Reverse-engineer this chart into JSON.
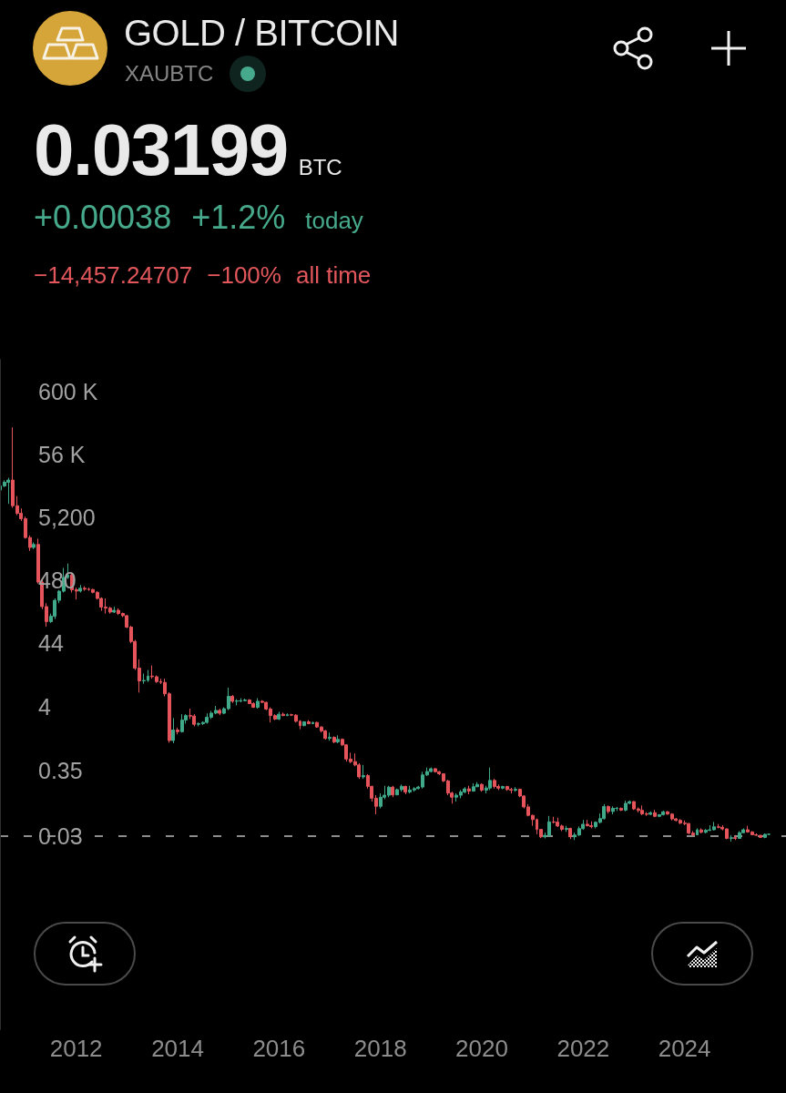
{
  "chart_data": {
    "type": "candlestick",
    "title": "GOLD / BITCOIN",
    "subtitle": "XAUBTC",
    "annotations": [
      "0.03199",
      "BTC",
      "+0.00038",
      "+1.2%",
      "today",
      "−14,457.24707",
      "−100%",
      "all time"
    ],
    "x": [
      "2010-07",
      "2010-08",
      "2010-09",
      "2010-10",
      "2010-11",
      "2010-12",
      "2011-01",
      "2011-02",
      "2011-03",
      "2011-04",
      "2011-05",
      "2011-06",
      "2011-07",
      "2011-08",
      "2011-09",
      "2011-10",
      "2011-11",
      "2011-12",
      "2012-01",
      "2012-02",
      "2012-03",
      "2012-04",
      "2012-05",
      "2012-06",
      "2012-07",
      "2012-08",
      "2012-09",
      "2012-10",
      "2012-11",
      "2012-12",
      "2013-01",
      "2013-02",
      "2013-03",
      "2013-04",
      "2013-05",
      "2013-06",
      "2013-07",
      "2013-08",
      "2013-09",
      "2013-10",
      "2013-11",
      "2013-12",
      "2014-01",
      "2014-02",
      "2014-03",
      "2014-04",
      "2014-05",
      "2014-06",
      "2014-07",
      "2014-08",
      "2014-09",
      "2014-10",
      "2014-11",
      "2014-12",
      "2015-01",
      "2015-02",
      "2015-03",
      "2015-04",
      "2015-05",
      "2015-06",
      "2015-07",
      "2015-08",
      "2015-09",
      "2015-10",
      "2015-11",
      "2015-12",
      "2016-01",
      "2016-02",
      "2016-03",
      "2016-04",
      "2016-05",
      "2016-06",
      "2016-07",
      "2016-08",
      "2016-09",
      "2016-10",
      "2016-11",
      "2016-12",
      "2017-01",
      "2017-02",
      "2017-03",
      "2017-04",
      "2017-05",
      "2017-06",
      "2017-07",
      "2017-08",
      "2017-09",
      "2017-10",
      "2017-11",
      "2017-12",
      "2018-01",
      "2018-02",
      "2018-03",
      "2018-04",
      "2018-05",
      "2018-06",
      "2018-07",
      "2018-08",
      "2018-09",
      "2018-10",
      "2018-11",
      "2018-12",
      "2019-01",
      "2019-02",
      "2019-03",
      "2019-04",
      "2019-05",
      "2019-06",
      "2019-07",
      "2019-08",
      "2019-09",
      "2019-10",
      "2019-11",
      "2019-12",
      "2020-01",
      "2020-02",
      "2020-03",
      "2020-04",
      "2020-05",
      "2020-06",
      "2020-07",
      "2020-08",
      "2020-09",
      "2020-10",
      "2020-11",
      "2020-12",
      "2021-01",
      "2021-02",
      "2021-03",
      "2021-04",
      "2021-05",
      "2021-06",
      "2021-07",
      "2021-08",
      "2021-09",
      "2021-10",
      "2021-11",
      "2021-12",
      "2022-01",
      "2022-02",
      "2022-03",
      "2022-04",
      "2022-05",
      "2022-06",
      "2022-07",
      "2022-08",
      "2022-09",
      "2022-10",
      "2022-11",
      "2022-12",
      "2023-01",
      "2023-02",
      "2023-03",
      "2023-04",
      "2023-05",
      "2023-06",
      "2023-07",
      "2023-08",
      "2023-09",
      "2023-10",
      "2023-11",
      "2023-12",
      "2024-01",
      "2024-02",
      "2024-03",
      "2024-04",
      "2024-05",
      "2024-06",
      "2024-07",
      "2024-08",
      "2024-09",
      "2024-10",
      "2024-11",
      "2024-12",
      "2025-01",
      "2025-02",
      "2025-03",
      "2025-04",
      "2025-05",
      "2025-06",
      "2025-07",
      "2025-08",
      "2025-09"
    ],
    "ohlc": [
      [
        14457,
        18500,
        14000,
        16900
      ],
      [
        16900,
        21000,
        16200,
        19400
      ],
      [
        19400,
        23000,
        8600,
        21100
      ],
      [
        21100,
        155000,
        7400,
        8000
      ],
      [
        8000,
        11500,
        5600,
        6000
      ],
      [
        6000,
        7200,
        4500,
        4900
      ],
      [
        4900,
        5300,
        2300,
        2400
      ],
      [
        2400,
        2600,
        1450,
        1650
      ],
      [
        1650,
        2000,
        1550,
        1850
      ],
      [
        1850,
        2300,
        420,
        445
      ],
      [
        445,
        520,
        160,
        176
      ],
      [
        176,
        200,
        82,
        100
      ],
      [
        100,
        135,
        95,
        122
      ],
      [
        122,
        240,
        110,
        223
      ],
      [
        223,
        330,
        200,
        315
      ],
      [
        315,
        760,
        300,
        530
      ],
      [
        530,
        900,
        500,
        582
      ],
      [
        582,
        640,
        300,
        332
      ],
      [
        332,
        360,
        230,
        317
      ],
      [
        317,
        400,
        300,
        352
      ],
      [
        352,
        380,
        320,
        340
      ],
      [
        340,
        360,
        320,
        336
      ],
      [
        336,
        345,
        290,
        302
      ],
      [
        302,
        315,
        230,
        240
      ],
      [
        240,
        250,
        150,
        173
      ],
      [
        173,
        240,
        135,
        166
      ],
      [
        166,
        175,
        135,
        143
      ],
      [
        143,
        175,
        138,
        153
      ],
      [
        153,
        165,
        128,
        136
      ],
      [
        136,
        140,
        118,
        125
      ],
      [
        125,
        128,
        78,
        81
      ],
      [
        81,
        85,
        44,
        47
      ],
      [
        47,
        50,
        16,
        17.2
      ],
      [
        17.2,
        24,
        6.8,
        10.6
      ],
      [
        10.6,
        14,
        9.5,
        10.8
      ],
      [
        10.8,
        16,
        10.2,
        12.7
      ],
      [
        12.7,
        19,
        11.5,
        12.4
      ],
      [
        12.4,
        13,
        9.8,
        10.3
      ],
      [
        10.3,
        11.5,
        9.4,
        10.0
      ],
      [
        10.0,
        11.5,
        5.9,
        6.5
      ],
      [
        6.5,
        6.9,
        1.02,
        1.11
      ],
      [
        1.11,
        2.6,
        1.0,
        1.65
      ],
      [
        1.65,
        1.8,
        1.4,
        1.55
      ],
      [
        1.55,
        3.0,
        1.5,
        2.4
      ],
      [
        2.4,
        3.0,
        2.1,
        2.85
      ],
      [
        2.85,
        3.7,
        2.5,
        2.8
      ],
      [
        2.8,
        3.0,
        1.9,
        2.05
      ],
      [
        2.05,
        2.2,
        1.9,
        2.1
      ],
      [
        2.1,
        2.3,
        2.0,
        2.2
      ],
      [
        2.2,
        3.1,
        2.1,
        2.68
      ],
      [
        2.68,
        3.4,
        2.5,
        3.13
      ],
      [
        3.13,
        4.1,
        3.0,
        3.47
      ],
      [
        3.47,
        3.7,
        2.9,
        3.11
      ],
      [
        3.11,
        3.9,
        3.0,
        3.7
      ],
      [
        3.7,
        8.2,
        3.5,
        5.9
      ],
      [
        5.9,
        6.2,
        4.6,
        4.9
      ],
      [
        4.9,
        5.3,
        4.2,
        4.95
      ],
      [
        4.95,
        5.5,
        4.7,
        5.0
      ],
      [
        5.0,
        5.4,
        4.9,
        5.15
      ],
      [
        5.15,
        5.3,
        4.4,
        4.5
      ],
      [
        4.5,
        4.7,
        3.8,
        3.9
      ],
      [
        3.9,
        5.5,
        3.7,
        4.9
      ],
      [
        4.9,
        5.1,
        4.6,
        4.7
      ],
      [
        4.7,
        4.8,
        3.5,
        3.65
      ],
      [
        3.65,
        3.9,
        2.2,
        2.85
      ],
      [
        2.85,
        3.0,
        2.4,
        2.5
      ],
      [
        2.5,
        3.3,
        2.4,
        3.0
      ],
      [
        3.0,
        3.2,
        2.8,
        2.85
      ],
      [
        2.85,
        3.1,
        2.8,
        2.95
      ],
      [
        2.95,
        3.05,
        2.8,
        2.9
      ],
      [
        2.9,
        3.0,
        2.2,
        2.3
      ],
      [
        2.3,
        2.4,
        1.7,
        1.95
      ],
      [
        1.95,
        2.3,
        1.9,
        2.25
      ],
      [
        2.25,
        2.4,
        2.05,
        2.1
      ],
      [
        2.1,
        2.25,
        2.05,
        2.2
      ],
      [
        2.2,
        2.25,
        1.8,
        1.85
      ],
      [
        1.85,
        1.9,
        1.5,
        1.6
      ],
      [
        1.6,
        1.65,
        1.15,
        1.2
      ],
      [
        1.2,
        1.5,
        1.1,
        1.25
      ],
      [
        1.25,
        1.3,
        1.0,
        1.05
      ],
      [
        1.05,
        1.35,
        1.0,
        1.16
      ],
      [
        1.16,
        1.2,
        0.9,
        0.94
      ],
      [
        0.94,
        0.97,
        0.5,
        0.55
      ],
      [
        0.55,
        0.7,
        0.47,
        0.5
      ],
      [
        0.5,
        0.68,
        0.42,
        0.44
      ],
      [
        0.44,
        0.47,
        0.26,
        0.28
      ],
      [
        0.28,
        0.44,
        0.26,
        0.295
      ],
      [
        0.295,
        0.31,
        0.18,
        0.196
      ],
      [
        0.196,
        0.2,
        0.11,
        0.125
      ],
      [
        0.125,
        0.14,
        0.068,
        0.092
      ],
      [
        0.092,
        0.15,
        0.085,
        0.13
      ],
      [
        0.13,
        0.2,
        0.12,
        0.14
      ],
      [
        0.14,
        0.2,
        0.13,
        0.19
      ],
      [
        0.19,
        0.2,
        0.13,
        0.142
      ],
      [
        0.142,
        0.18,
        0.14,
        0.173
      ],
      [
        0.173,
        0.21,
        0.16,
        0.196
      ],
      [
        0.196,
        0.2,
        0.145,
        0.158
      ],
      [
        0.158,
        0.2,
        0.15,
        0.171
      ],
      [
        0.171,
        0.19,
        0.16,
        0.18
      ],
      [
        0.18,
        0.2,
        0.175,
        0.191
      ],
      [
        0.191,
        0.34,
        0.18,
        0.302
      ],
      [
        0.302,
        0.4,
        0.29,
        0.343
      ],
      [
        0.343,
        0.4,
        0.33,
        0.382
      ],
      [
        0.382,
        0.39,
        0.33,
        0.341
      ],
      [
        0.341,
        0.35,
        0.3,
        0.315
      ],
      [
        0.315,
        0.32,
        0.23,
        0.241
      ],
      [
        0.241,
        0.25,
        0.14,
        0.152
      ],
      [
        0.152,
        0.16,
        0.102,
        0.13
      ],
      [
        0.13,
        0.15,
        0.11,
        0.14
      ],
      [
        0.14,
        0.17,
        0.125,
        0.158
      ],
      [
        0.158,
        0.19,
        0.15,
        0.178
      ],
      [
        0.178,
        0.2,
        0.145,
        0.164
      ],
      [
        0.164,
        0.22,
        0.16,
        0.193
      ],
      [
        0.193,
        0.23,
        0.19,
        0.211
      ],
      [
        0.211,
        0.22,
        0.16,
        0.17
      ],
      [
        0.17,
        0.2,
        0.15,
        0.184
      ],
      [
        0.184,
        0.4,
        0.17,
        0.245
      ],
      [
        0.245,
        0.26,
        0.18,
        0.195
      ],
      [
        0.195,
        0.21,
        0.17,
        0.183
      ],
      [
        0.183,
        0.2,
        0.175,
        0.195
      ],
      [
        0.195,
        0.2,
        0.165,
        0.174
      ],
      [
        0.174,
        0.185,
        0.15,
        0.169
      ],
      [
        0.169,
        0.19,
        0.16,
        0.175
      ],
      [
        0.175,
        0.18,
        0.13,
        0.136
      ],
      [
        0.136,
        0.14,
        0.085,
        0.09
      ],
      [
        0.09,
        0.1,
        0.063,
        0.0654
      ],
      [
        0.0654,
        0.067,
        0.044,
        0.0558
      ],
      [
        0.0558,
        0.058,
        0.032,
        0.0384
      ],
      [
        0.0384,
        0.0385,
        0.0277,
        0.029
      ],
      [
        0.029,
        0.034,
        0.0273,
        0.0307
      ],
      [
        0.0307,
        0.064,
        0.029,
        0.0511
      ],
      [
        0.0511,
        0.062,
        0.048,
        0.0506
      ],
      [
        0.0506,
        0.06,
        0.042,
        0.0437
      ],
      [
        0.0437,
        0.046,
        0.036,
        0.0385
      ],
      [
        0.0385,
        0.044,
        0.035,
        0.0398
      ],
      [
        0.0398,
        0.041,
        0.0266,
        0.0291
      ],
      [
        0.0291,
        0.034,
        0.0257,
        0.0311
      ],
      [
        0.0311,
        0.043,
        0.03,
        0.0395
      ],
      [
        0.0395,
        0.055,
        0.038,
        0.0467
      ],
      [
        0.0467,
        0.055,
        0.043,
        0.0442
      ],
      [
        0.0442,
        0.052,
        0.04,
        0.0426
      ],
      [
        0.0426,
        0.052,
        0.04,
        0.0503
      ],
      [
        0.0503,
        0.07,
        0.048,
        0.0578
      ],
      [
        0.0578,
        0.1,
        0.056,
        0.0913
      ],
      [
        0.0913,
        0.095,
        0.07,
        0.0758
      ],
      [
        0.0758,
        0.092,
        0.068,
        0.0853
      ],
      [
        0.0853,
        0.09,
        0.077,
        0.0855
      ],
      [
        0.0855,
        0.088,
        0.077,
        0.0797
      ],
      [
        0.0797,
        0.114,
        0.076,
        0.103
      ],
      [
        0.103,
        0.115,
        0.1,
        0.11
      ],
      [
        0.11,
        0.112,
        0.08,
        0.0835
      ],
      [
        0.0835,
        0.088,
        0.073,
        0.0789
      ],
      [
        0.0789,
        0.095,
        0.066,
        0.0691
      ],
      [
        0.0691,
        0.074,
        0.064,
        0.068
      ],
      [
        0.068,
        0.076,
        0.066,
        0.0722
      ],
      [
        0.0722,
        0.08,
        0.061,
        0.063
      ],
      [
        0.063,
        0.068,
        0.061,
        0.0672
      ],
      [
        0.0672,
        0.078,
        0.065,
        0.0748
      ],
      [
        0.0748,
        0.077,
        0.067,
        0.0686
      ],
      [
        0.0686,
        0.071,
        0.054,
        0.0572
      ],
      [
        0.0572,
        0.059,
        0.052,
        0.054
      ],
      [
        0.054,
        0.057,
        0.047,
        0.0488
      ],
      [
        0.0488,
        0.054,
        0.045,
        0.0479
      ],
      [
        0.0479,
        0.049,
        0.032,
        0.0334
      ],
      [
        0.0334,
        0.036,
        0.0298,
        0.0313
      ],
      [
        0.0313,
        0.04,
        0.031,
        0.0377
      ],
      [
        0.0377,
        0.04,
        0.033,
        0.0345
      ],
      [
        0.0345,
        0.039,
        0.033,
        0.0371
      ],
      [
        0.0371,
        0.045,
        0.036,
        0.0379
      ],
      [
        0.0379,
        0.051,
        0.037,
        0.0424
      ],
      [
        0.0424,
        0.047,
        0.04,
        0.0416
      ],
      [
        0.0416,
        0.045,
        0.037,
        0.0391
      ],
      [
        0.0391,
        0.04,
        0.0265,
        0.0274
      ],
      [
        0.0274,
        0.031,
        0.0243,
        0.0281
      ],
      [
        0.0281,
        0.031,
        0.0257,
        0.0273
      ],
      [
        0.0273,
        0.036,
        0.027,
        0.0339
      ],
      [
        0.0339,
        0.04,
        0.033,
        0.0379
      ],
      [
        0.0379,
        0.044,
        0.034,
        0.0349
      ],
      [
        0.0349,
        0.036,
        0.031,
        0.0314
      ],
      [
        0.0314,
        0.033,
        0.03,
        0.0308
      ],
      [
        0.0308,
        0.031,
        0.028,
        0.0284
      ],
      [
        0.0284,
        0.033,
        0.0275,
        0.0319
      ],
      [
        0.0319,
        0.033,
        0.031,
        0.03199
      ]
    ],
    "colors": [
      "#3fa98a",
      "#3fa98a",
      "#3fa98a",
      "#e5545a",
      "#e5545a",
      "#e5545a",
      "#e5545a",
      "#e5545a",
      "#3fa98a",
      "#e5545a",
      "#e5545a",
      "#e5545a",
      "#3fa98a",
      "#3fa98a",
      "#3fa98a",
      "#3fa98a",
      "#3fa98a",
      "#e5545a",
      "#e5545a",
      "#3fa98a",
      "#e5545a",
      "#e5545a",
      "#e5545a",
      "#e5545a",
      "#e5545a",
      "#e5545a",
      "#e5545a",
      "#3fa98a",
      "#e5545a",
      "#e5545a",
      "#e5545a",
      "#e5545a",
      "#e5545a",
      "#e5545a",
      "#3fa98a",
      "#3fa98a",
      "#e5545a",
      "#e5545a",
      "#e5545a",
      "#e5545a",
      "#e5545a",
      "#3fa98a",
      "#e5545a",
      "#3fa98a",
      "#3fa98a",
      "#e5545a",
      "#e5545a",
      "#3fa98a",
      "#3fa98a",
      "#3fa98a",
      "#3fa98a",
      "#3fa98a",
      "#e5545a",
      "#3fa98a",
      "#3fa98a",
      "#e5545a",
      "#3fa98a",
      "#3fa98a",
      "#3fa98a",
      "#e5545a",
      "#e5545a",
      "#3fa98a",
      "#e5545a",
      "#e5545a",
      "#e5545a",
      "#e5545a",
      "#3fa98a",
      "#e5545a",
      "#3fa98a",
      "#e5545a",
      "#e5545a",
      "#e5545a",
      "#3fa98a",
      "#e5545a",
      "#3fa98a",
      "#e5545a",
      "#e5545a",
      "#e5545a",
      "#3fa98a",
      "#e5545a",
      "#3fa98a",
      "#e5545a",
      "#e5545a",
      "#e5545a",
      "#e5545a",
      "#e5545a",
      "#3fa98a",
      "#e5545a",
      "#e5545a",
      "#e5545a",
      "#3fa98a",
      "#3fa98a",
      "#3fa98a",
      "#e5545a",
      "#3fa98a",
      "#3fa98a",
      "#e5545a",
      "#3fa98a",
      "#3fa98a",
      "#3fa98a",
      "#3fa98a",
      "#3fa98a",
      "#3fa98a",
      "#e5545a",
      "#e5545a",
      "#e5545a",
      "#e5545a",
      "#e5545a",
      "#3fa98a",
      "#3fa98a",
      "#3fa98a",
      "#e5545a",
      "#3fa98a",
      "#3fa98a",
      "#e5545a",
      "#3fa98a",
      "#3fa98a",
      "#e5545a",
      "#e5545a",
      "#3fa98a",
      "#e5545a",
      "#e5545a",
      "#3fa98a",
      "#e5545a",
      "#e5545a",
      "#e5545a",
      "#e5545a",
      "#e5545a",
      "#e5545a",
      "#3fa98a",
      "#3fa98a",
      "#e5545a",
      "#e5545a",
      "#e5545a",
      "#3fa98a",
      "#e5545a",
      "#3fa98a",
      "#3fa98a",
      "#3fa98a",
      "#e5545a",
      "#e5545a",
      "#3fa98a",
      "#3fa98a",
      "#3fa98a",
      "#e5545a",
      "#3fa98a",
      "#3fa98a",
      "#e5545a",
      "#3fa98a",
      "#3fa98a",
      "#e5545a",
      "#e5545a",
      "#e5545a",
      "#e5545a",
      "#3fa98a",
      "#e5545a",
      "#3fa98a",
      "#3fa98a",
      "#e5545a",
      "#e5545a",
      "#e5545a",
      "#e5545a",
      "#e5545a",
      "#e5545a",
      "#e5545a",
      "#3fa98a",
      "#e5545a",
      "#3fa98a",
      "#3fa98a",
      "#3fa98a",
      "#e5545a",
      "#e5545a",
      "#e5545a",
      "#3fa98a",
      "#e5545a",
      "#3fa98a",
      "#3fa98a",
      "#e5545a",
      "#e5545a",
      "#e5545a",
      "#e5545a",
      "#3fa98a",
      "#3fa98a"
    ],
    "xlim": [
      "2010-07",
      "2026"
    ],
    "xticks": [
      "2012",
      "2014",
      "2016",
      "2018",
      "2020",
      "2022",
      "2024"
    ],
    "ylim": [
      2e-05,
      2000000
    ],
    "yticks": [
      0.03,
      0.35,
      4,
      44,
      480,
      {
        "value": 5200,
        "label": "5,200"
      },
      {
        "value": 56000,
        "label": "56 K"
      },
      {
        "value": 600000,
        "label": "600 K"
      }
    ],
    "log": true,
    "ref_lines": [
      {
        "axis": "y",
        "value": 0.03199,
        "color": "#8c8c8c",
        "line_style": "dashed"
      }
    ]
  }
}
